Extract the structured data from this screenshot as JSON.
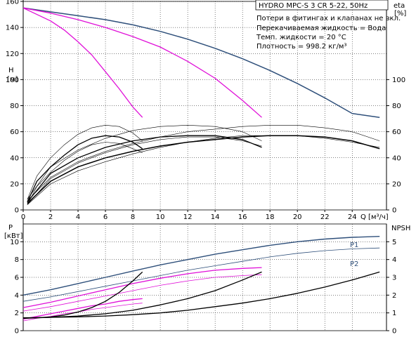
{
  "title": "HYDRO MPC-S 3 CR 5-22, 50Hz",
  "info_lines": [
    "Потери в фитингах и клапанах не вкл.",
    "Перекачиваемая жидкость = Вода",
    "Темп. жидкости = 20 °C",
    "Плотность = 998.2 кг/м³"
  ],
  "colors": {
    "blue": "#2e4f7a",
    "magenta": "#e010d8",
    "black": "#000000"
  },
  "chart_data": [
    {
      "type": "line",
      "name": "H / eta",
      "xlabel": "Q [м³/ч]",
      "ylabel_left": [
        "H",
        "[м]"
      ],
      "ylabel_right": [
        "eta",
        "[%]"
      ],
      "xlim": [
        0,
        26.5
      ],
      "ylim": [
        0,
        160
      ],
      "ylim_right": [
        0,
        160
      ],
      "x_ticks": [
        0,
        2,
        4,
        6,
        8,
        10,
        12,
        14,
        16,
        18,
        20,
        22,
        24
      ],
      "y_ticks": [
        0,
        20,
        40,
        60,
        80,
        100,
        120,
        140,
        160
      ],
      "y_ticks_right": [
        0,
        20,
        40,
        60,
        80,
        100
      ],
      "grid": true,
      "series": [
        {
          "color": "blue",
          "width": 1.5,
          "x": [
            0,
            2,
            4,
            6,
            8,
            10,
            12,
            14,
            16,
            18,
            20,
            22,
            24,
            26
          ],
          "y": [
            155,
            152,
            149,
            146,
            142,
            137,
            131,
            124,
            116,
            107,
            97,
            86,
            74,
            71
          ]
        },
        {
          "color": "magenta",
          "width": 1.3,
          "x": [
            0,
            2,
            4,
            6,
            8,
            10,
            12,
            14,
            16,
            17.4
          ],
          "y": [
            155,
            151,
            146,
            140,
            133,
            125,
            114,
            101,
            84,
            71
          ]
        },
        {
          "color": "magenta",
          "width": 1.3,
          "x": [
            0,
            1,
            2,
            3,
            4,
            5,
            6,
            7,
            8,
            8.7
          ],
          "y": [
            155,
            150,
            145,
            138,
            129,
            119,
            106,
            93,
            79,
            71
          ]
        },
        {
          "color": "black",
          "width": 1.5,
          "x": [
            0.3,
            2,
            4,
            6,
            8,
            10,
            12,
            14,
            16,
            18,
            20,
            22,
            24,
            26
          ],
          "y": [
            5,
            22,
            33,
            40,
            45,
            49,
            52,
            54,
            56,
            57,
            57,
            56,
            53,
            47
          ]
        },
        {
          "color": "black",
          "width": 1.3,
          "x": [
            0.3,
            2,
            4,
            6,
            8,
            10,
            12,
            14,
            16,
            17.4
          ],
          "y": [
            6,
            28,
            40,
            48,
            53,
            56,
            57,
            57,
            54,
            48
          ]
        },
        {
          "color": "black",
          "width": 1.3,
          "x": [
            0.3,
            1,
            2,
            3,
            4,
            5,
            6,
            7,
            8,
            8.7
          ],
          "y": [
            6,
            22,
            33,
            42,
            50,
            55,
            57,
            56,
            52,
            47
          ]
        },
        {
          "color": "black",
          "width": 0.6,
          "x": [
            0.3,
            2,
            4,
            6,
            8,
            10,
            12,
            14,
            16,
            18,
            20,
            22,
            24,
            26
          ],
          "y": [
            7,
            25,
            37,
            45,
            51,
            56,
            60,
            62,
            64,
            65,
            65,
            63,
            60,
            53
          ]
        },
        {
          "color": "black",
          "width": 0.6,
          "x": [
            0.3,
            2,
            4,
            6,
            8,
            10,
            12,
            14,
            16,
            17.4
          ],
          "y": [
            8,
            33,
            46,
            55,
            61,
            64,
            65,
            64,
            60,
            53
          ]
        },
        {
          "color": "black",
          "width": 0.6,
          "x": [
            0.3,
            1,
            2,
            3,
            4,
            5,
            6,
            7,
            8,
            8.7
          ],
          "y": [
            8,
            26,
            40,
            50,
            58,
            63,
            65,
            64,
            59,
            53
          ]
        },
        {
          "color": "black",
          "width": 0.6,
          "x": [
            0.3,
            2,
            4,
            6,
            8,
            10,
            12,
            14,
            16,
            18,
            20,
            22,
            24,
            26
          ],
          "y": [
            4,
            20,
            30,
            37,
            43,
            48,
            52,
            55,
            57,
            57,
            57,
            55,
            52,
            48
          ]
        },
        {
          "color": "black",
          "width": 0.6,
          "x": [
            0.3,
            2,
            4,
            6,
            8,
            10,
            12,
            14,
            16,
            17.4
          ],
          "y": [
            4,
            24,
            36,
            44,
            50,
            54,
            56,
            56,
            53,
            49
          ]
        },
        {
          "color": "black",
          "width": 0.6,
          "x": [
            0.3,
            1,
            2,
            3,
            4,
            5,
            6,
            7,
            8,
            8.7
          ],
          "y": [
            4,
            18,
            29,
            38,
            45,
            50,
            52,
            51,
            47,
            44
          ]
        }
      ]
    },
    {
      "type": "line",
      "name": "P / NPSH",
      "ylabel_left": [
        "P",
        "[кВт]"
      ],
      "ylabel_right": [
        "NPSH",
        ""
      ],
      "xlim": [
        0,
        26.5
      ],
      "ylim": [
        0,
        12
      ],
      "ylim_right": [
        0,
        6
      ],
      "y_ticks": [
        0,
        2,
        4,
        6,
        8,
        10
      ],
      "y_ticks_right": [
        0,
        1,
        2,
        3,
        4,
        5
      ],
      "grid": true,
      "series_labels": [
        {
          "text": "P1",
          "x": 24.4,
          "y": 10.6
        },
        {
          "text": "P2",
          "x": 24.4,
          "y": 9.1
        }
      ],
      "series": [
        {
          "name": "P1",
          "color": "blue",
          "width": 1.4,
          "x": [
            0,
            2,
            4,
            6,
            8,
            10,
            12,
            14,
            16,
            18,
            20,
            22,
            24,
            26
          ],
          "y": [
            4.0,
            4.6,
            5.3,
            6.0,
            6.7,
            7.4,
            8.0,
            8.6,
            9.1,
            9.6,
            10.0,
            10.3,
            10.5,
            10.6
          ]
        },
        {
          "name": "P2",
          "color": "blue",
          "width": 0.8,
          "x": [
            0,
            2,
            4,
            6,
            8,
            10,
            12,
            14,
            16,
            18,
            20,
            22,
            24,
            26
          ],
          "y": [
            3.3,
            3.8,
            4.4,
            5.0,
            5.6,
            6.2,
            6.8,
            7.3,
            7.8,
            8.3,
            8.7,
            9.0,
            9.2,
            9.3
          ]
        },
        {
          "color": "magenta",
          "width": 1.3,
          "x": [
            0,
            2,
            4,
            6,
            8,
            10,
            12,
            14,
            16,
            17.4
          ],
          "y": [
            2.6,
            3.2,
            3.9,
            4.6,
            5.3,
            5.9,
            6.4,
            6.8,
            7.0,
            7.1
          ]
        },
        {
          "color": "magenta",
          "width": 0.8,
          "x": [
            0,
            2,
            4,
            6,
            8,
            10,
            12,
            14,
            16,
            17.4
          ],
          "y": [
            2.2,
            2.7,
            3.3,
            3.9,
            4.5,
            5.1,
            5.6,
            6.0,
            6.2,
            6.3
          ]
        },
        {
          "color": "magenta",
          "width": 1.3,
          "x": [
            0,
            1,
            2,
            3,
            4,
            5,
            6,
            7,
            8,
            8.7
          ],
          "y": [
            1.3,
            1.6,
            1.9,
            2.2,
            2.5,
            2.8,
            3.0,
            3.3,
            3.5,
            3.6
          ]
        },
        {
          "color": "magenta",
          "width": 0.8,
          "x": [
            0,
            1,
            2,
            3,
            4,
            5,
            6,
            7,
            8,
            8.7
          ],
          "y": [
            1.1,
            1.4,
            1.6,
            1.9,
            2.1,
            2.4,
            2.6,
            2.8,
            3.0,
            3.1
          ]
        },
        {
          "color": "black",
          "width": 1.3,
          "x": [
            0,
            2,
            4,
            6,
            8,
            10,
            12,
            14,
            16,
            18,
            20,
            22,
            24,
            26
          ],
          "y": [
            1.45,
            1.5,
            1.55,
            1.65,
            1.8,
            2.0,
            2.3,
            2.7,
            3.1,
            3.6,
            4.2,
            4.9,
            5.7,
            6.6
          ]
        },
        {
          "color": "black",
          "width": 1.3,
          "x": [
            0,
            2,
            4,
            6,
            8,
            10,
            12,
            14,
            16,
            17.4
          ],
          "y": [
            1.4,
            1.5,
            1.65,
            1.9,
            2.3,
            2.9,
            3.6,
            4.5,
            5.7,
            6.6
          ]
        },
        {
          "color": "black",
          "width": 1.3,
          "x": [
            0,
            1,
            2,
            3,
            4,
            5,
            6,
            7,
            8,
            8.7
          ],
          "y": [
            1.4,
            1.45,
            1.55,
            1.75,
            2.1,
            2.6,
            3.3,
            4.3,
            5.6,
            6.6
          ]
        }
      ]
    }
  ]
}
